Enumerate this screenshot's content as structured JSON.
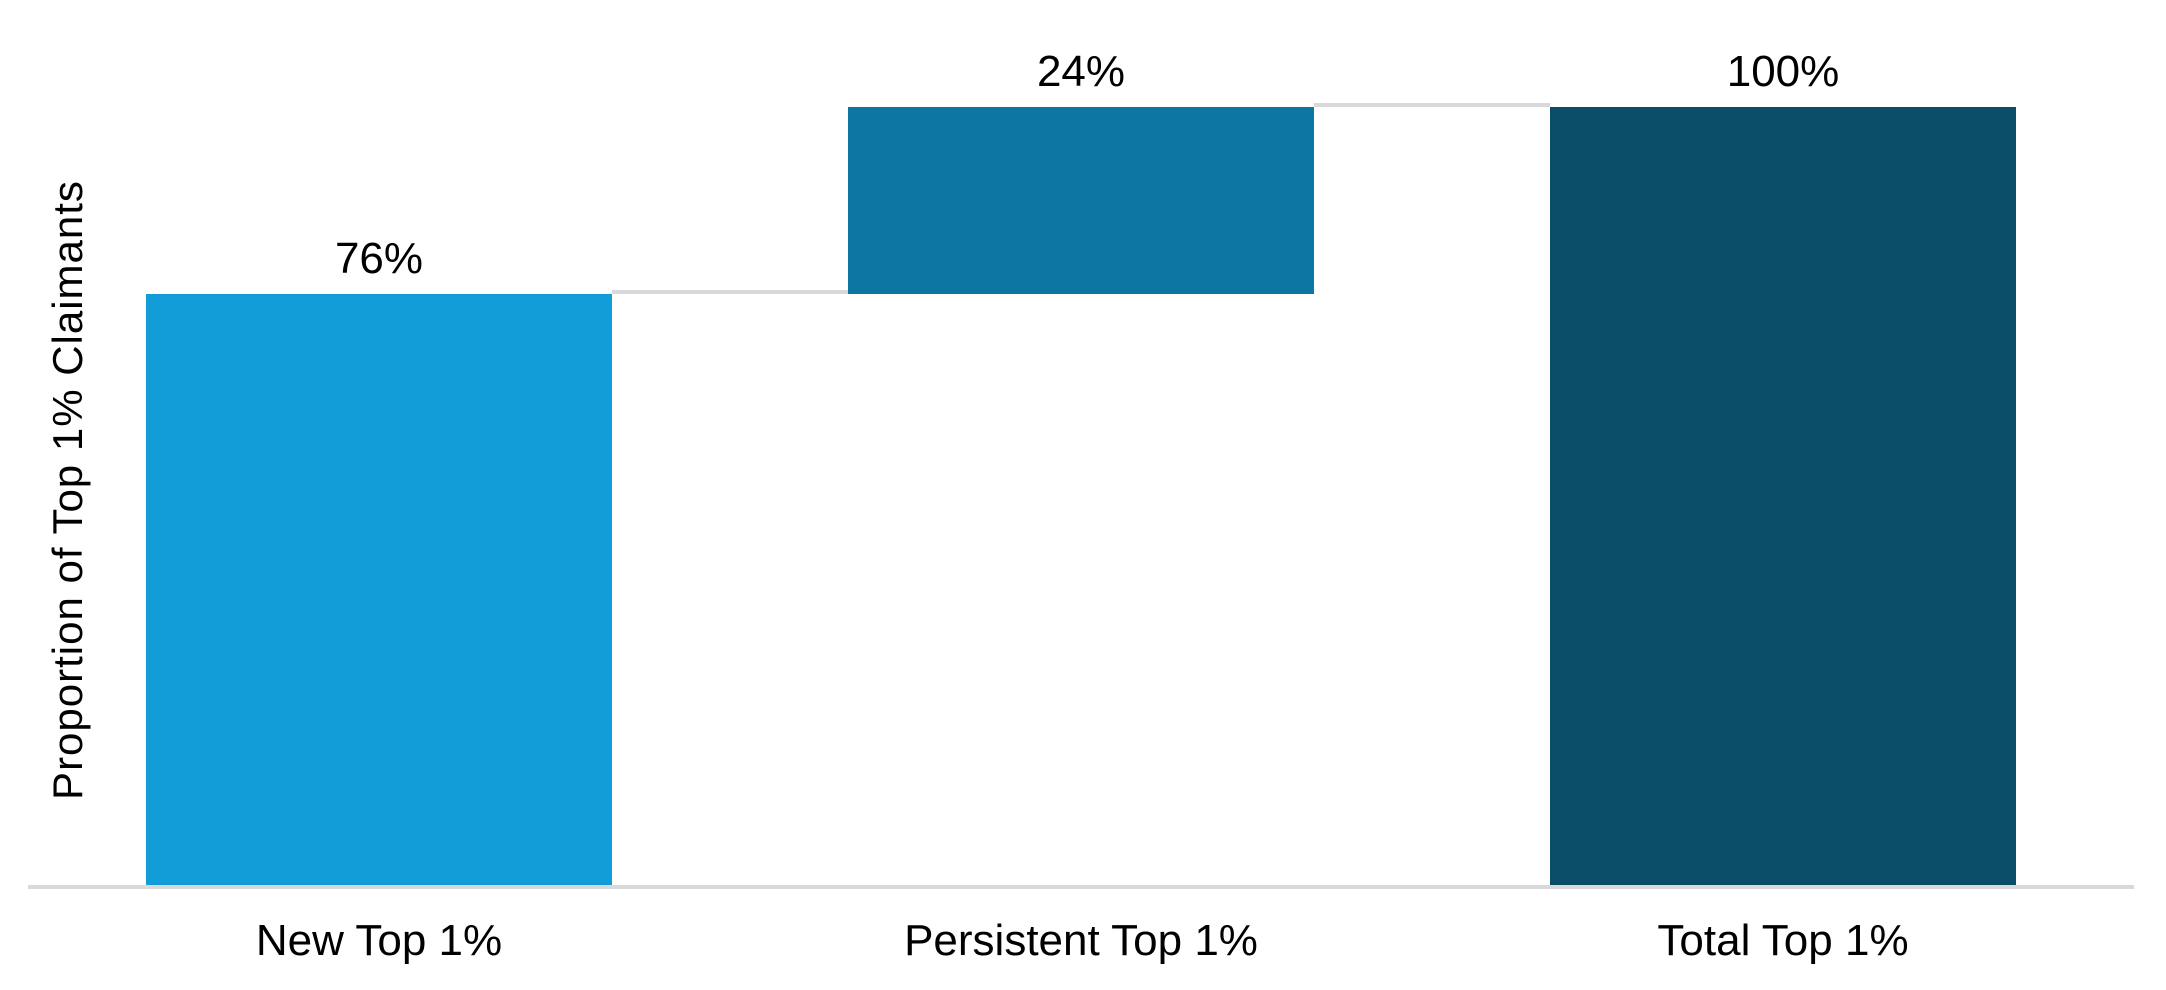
{
  "chart_data": {
    "type": "bar",
    "variant": "waterfall",
    "title": "",
    "xlabel": "",
    "ylabel": "Proportion of Top 1% Claimants",
    "ylim": [
      0,
      100
    ],
    "grid": false,
    "legend": false,
    "categories": [
      "New Top 1%",
      "Persistent Top 1%",
      "Total Top 1%"
    ],
    "values": [
      76,
      24,
      100
    ],
    "bar_segments": [
      {
        "category": "New Top 1%",
        "value": 76,
        "label": "76%",
        "start": 0,
        "end": 76,
        "color": "#129DD9"
      },
      {
        "category": "Persistent Top 1%",
        "value": 24,
        "label": "24%",
        "start": 76,
        "end": 100,
        "color": "#0D76A3"
      },
      {
        "category": "Total Top 1%",
        "value": 100,
        "label": "100%",
        "start": 0,
        "end": 100,
        "color": "#0A4D68"
      }
    ],
    "connector_color": "#D9D9D9",
    "axis_line_color": "#D9D9D9",
    "label_color": "#000000",
    "background_color": "#FFFFFF"
  }
}
